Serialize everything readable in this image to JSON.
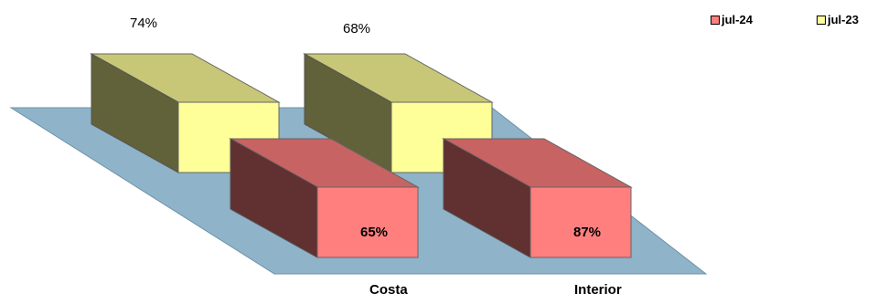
{
  "chart_data": {
    "type": "bar",
    "categories": [
      "Costa",
      "Interior"
    ],
    "series": [
      {
        "name": "jul-24",
        "values": [
          65,
          87
        ],
        "data_labels": [
          "65%",
          "87%"
        ],
        "color": "#FF7F7F"
      },
      {
        "name": "jul-23",
        "values": [
          74,
          68
        ],
        "data_labels": [
          "74%",
          "68%"
        ],
        "color": "#FFFF99"
      }
    ],
    "floor_color": "#8FB3C8",
    "legend_position": "top-right",
    "grid": false
  }
}
